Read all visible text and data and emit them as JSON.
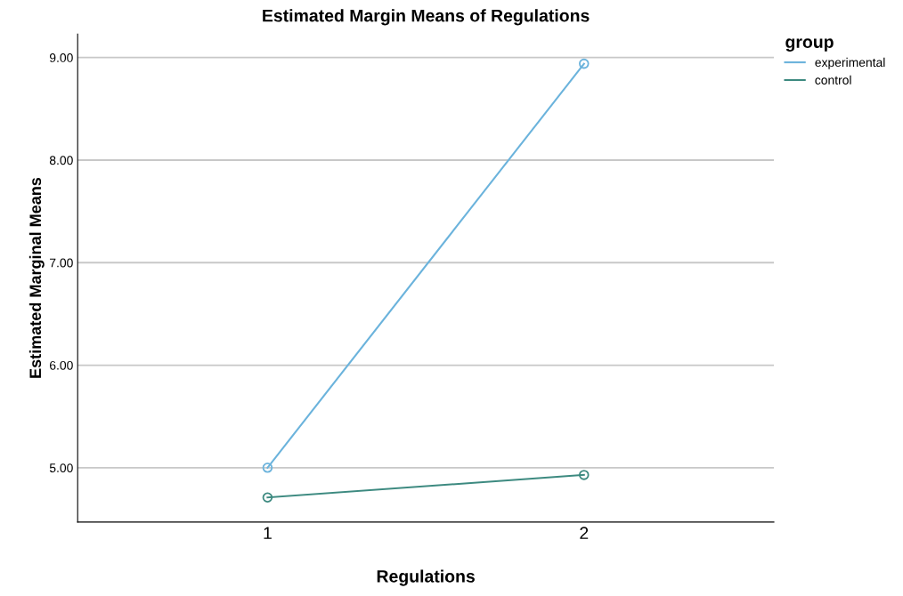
{
  "chart_data": {
    "type": "line",
    "title": "Estimated Margin Means of Regulations",
    "xlabel": "Regulations",
    "ylabel": "Estimated Marginal Means",
    "legend_title": "group",
    "categories": [
      "1",
      "2"
    ],
    "series": [
      {
        "name": "experimental",
        "color": "#6bb3dc",
        "values": [
          5.0,
          8.94
        ]
      },
      {
        "name": "control",
        "color": "#3d8a80",
        "values": [
          4.71,
          4.93
        ]
      }
    ],
    "ylim": [
      4.47,
      9.23
    ],
    "yticks": [
      {
        "value": 5,
        "label": "5.00"
      },
      {
        "value": 6,
        "label": "6.00"
      },
      {
        "value": 7,
        "label": "7.00"
      },
      {
        "value": 8,
        "label": "8.00"
      },
      {
        "value": 9,
        "label": "9.00"
      }
    ],
    "grid": "y",
    "legend": "top right",
    "marker": "circle",
    "line_style": "solid"
  }
}
